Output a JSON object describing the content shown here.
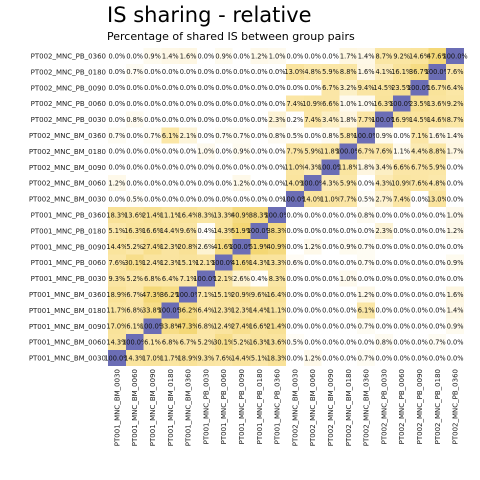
{
  "chart_data": {
    "type": "heatmap",
    "title": "IS sharing - relative",
    "subtitle": "Percentage of shared IS between group pairs",
    "rows": [
      "PT002_MNC_PB_0360",
      "PT002_MNC_PB_0180",
      "PT002_MNC_PB_0090",
      "PT002_MNC_PB_0060",
      "PT002_MNC_PB_0030",
      "PT002_MNC_BM_0360",
      "PT002_MNC_BM_0180",
      "PT002_MNC_BM_0090",
      "PT002_MNC_BM_0060",
      "PT002_MNC_BM_0030",
      "PT001_MNC_PB_0360",
      "PT001_MNC_PB_0180",
      "PT001_MNC_PB_0090",
      "PT001_MNC_PB_0060",
      "PT001_MNC_PB_0030",
      "PT001_MNC_BM_0360",
      "PT001_MNC_BM_0180",
      "PT001_MNC_BM_0090",
      "PT001_MNC_BM_0060",
      "PT001_MNC_BM_0030"
    ],
    "columns": [
      "PT001_MNC_BM_0030",
      "PT001_MNC_BM_0060",
      "PT001_MNC_BM_0090",
      "PT001_MNC_BM_0180",
      "PT001_MNC_BM_0360",
      "PT001_MNC_PB_0030",
      "PT001_MNC_PB_0060",
      "PT001_MNC_PB_0090",
      "PT001_MNC_PB_0180",
      "PT001_MNC_PB_0360",
      "PT002_MNC_BM_0030",
      "PT002_MNC_BM_0060",
      "PT002_MNC_BM_0090",
      "PT002_MNC_BM_0180",
      "PT002_MNC_BM_0360",
      "PT002_MNC_PB_0030",
      "PT002_MNC_PB_0060",
      "PT002_MNC_PB_0090",
      "PT002_MNC_PB_0180",
      "PT002_MNC_PB_0360"
    ],
    "values": [
      [
        "0.0%",
        "0.0%",
        "0.9%",
        "1.4%",
        "1.6%",
        "0.0%",
        "0.9%",
        "0.0%",
        "1.2%",
        "1.0%",
        "0.0%",
        "0.0%",
        "0.0%",
        "1.7%",
        "1.4%",
        "8.7%",
        "9.2%",
        "14.6%",
        "47.6%",
        "100.0%"
      ],
      [
        "0.0%",
        "0.7%",
        "0.0%",
        "0.0%",
        "0.0%",
        "0.0%",
        "0.0%",
        "0.0%",
        "0.0%",
        "0.0%",
        "13.0%",
        "4.8%",
        "5.9%",
        "8.8%",
        "1.6%",
        "4.1%",
        "16.1%",
        "36.7%",
        "100.0%",
        "7.6%"
      ],
      [
        "0.0%",
        "0.0%",
        "0.0%",
        "0.0%",
        "0.0%",
        "0.0%",
        "0.0%",
        "0.0%",
        "0.0%",
        "0.0%",
        "0.0%",
        "0.0%",
        "6.7%",
        "3.2%",
        "9.4%",
        "14.5%",
        "23.5%",
        "100.0%",
        "16.7%",
        "6.4%"
      ],
      [
        "0.0%",
        "0.0%",
        "0.0%",
        "0.0%",
        "0.0%",
        "0.0%",
        "0.0%",
        "0.0%",
        "0.0%",
        "0.0%",
        "7.4%",
        "10.9%",
        "6.6%",
        "1.0%",
        "1.0%",
        "16.3%",
        "100.0%",
        "23.5%",
        "13.6%",
        "9.2%"
      ],
      [
        "0.0%",
        "0.8%",
        "0.0%",
        "0.0%",
        "0.0%",
        "0.0%",
        "0.0%",
        "0.0%",
        "0.0%",
        "2.3%",
        "0.2%",
        "7.4%",
        "3.4%",
        "1.8%",
        "7.7%",
        "100.0%",
        "16.9%",
        "14.5%",
        "14.6%",
        "8.7%"
      ],
      [
        "0.7%",
        "0.0%",
        "0.7%",
        "6.1%",
        "2.1%",
        "0.0%",
        "0.7%",
        "0.7%",
        "0.0%",
        "0.8%",
        "0.5%",
        "0.0%",
        "0.8%",
        "5.8%",
        "100.0%",
        "0.9%",
        "0.0%",
        "7.1%",
        "1.6%",
        "1.4%"
      ],
      [
        "0.0%",
        "0.0%",
        "0.0%",
        "0.0%",
        "0.0%",
        "1.0%",
        "0.0%",
        "0.9%",
        "0.0%",
        "0.0%",
        "7.7%",
        "5.9%",
        "11.8%",
        "100.0%",
        "6.7%",
        "7.6%",
        "1.1%",
        "4.4%",
        "8.8%",
        "1.7%"
      ],
      [
        "0.0%",
        "0.0%",
        "0.0%",
        "0.0%",
        "0.0%",
        "0.0%",
        "0.0%",
        "0.0%",
        "0.0%",
        "0.0%",
        "11.0%",
        "4.3%",
        "100.0%",
        "11.8%",
        "1.8%",
        "3.4%",
        "6.6%",
        "6.7%",
        "5.9%",
        "0.0%"
      ],
      [
        "1.2%",
        "0.0%",
        "0.0%",
        "0.0%",
        "0.0%",
        "0.0%",
        "0.0%",
        "1.2%",
        "0.0%",
        "0.0%",
        "14.0%",
        "100.0%",
        "4.3%",
        "5.9%",
        "0.0%",
        "4.3%",
        "10.9%",
        "7.6%",
        "4.8%",
        "0.0%"
      ],
      [
        "0.0%",
        "0.5%",
        "0.0%",
        "0.0%",
        "0.0%",
        "0.0%",
        "0.0%",
        "0.0%",
        "0.0%",
        "0.0%",
        "100.0%",
        "14.0%",
        "11.0%",
        "7.7%",
        "0.5%",
        "2.7%",
        "7.4%",
        "0.0%",
        "13.0%",
        "0.0%"
      ],
      [
        "18.3%",
        "13.6%",
        "21.4%",
        "11.1%",
        "16.4%",
        "8.3%",
        "13.3%",
        "40.9%",
        "38.3%",
        "100.0%",
        "0.0%",
        "0.0%",
        "0.0%",
        "0.0%",
        "0.8%",
        "0.0%",
        "0.0%",
        "0.0%",
        "0.0%",
        "1.0%"
      ],
      [
        "5.1%",
        "16.3%",
        "16.6%",
        "14.4%",
        "9.6%",
        "0.4%",
        "14.3%",
        "51.9%",
        "100.0%",
        "38.3%",
        "0.0%",
        "0.0%",
        "0.0%",
        "0.0%",
        "0.0%",
        "2.3%",
        "0.0%",
        "0.0%",
        "0.0%",
        "1.2%"
      ],
      [
        "14.4%",
        "5.2%",
        "27.4%",
        "12.3%",
        "20.8%",
        "2.6%",
        "41.6%",
        "100.0%",
        "51.9%",
        "40.9%",
        "0.0%",
        "1.2%",
        "0.0%",
        "0.9%",
        "0.7%",
        "0.0%",
        "0.0%",
        "0.0%",
        "0.0%",
        "0.0%"
      ],
      [
        "7.6%",
        "30.1%",
        "12.4%",
        "12.3%",
        "15.1%",
        "12.1%",
        "100.0%",
        "41.6%",
        "14.3%",
        "13.3%",
        "0.6%",
        "0.0%",
        "0.0%",
        "0.0%",
        "0.7%",
        "0.0%",
        "0.0%",
        "0.0%",
        "0.0%",
        "0.9%"
      ],
      [
        "9.3%",
        "5.2%",
        "6.8%",
        "6.4%",
        "7.1%",
        "100.0%",
        "12.1%",
        "2.6%",
        "0.4%",
        "8.3%",
        "0.0%",
        "0.0%",
        "0.0%",
        "1.0%",
        "0.0%",
        "0.0%",
        "0.0%",
        "0.0%",
        "0.0%",
        "0.0%"
      ],
      [
        "18.9%",
        "6.7%",
        "47.3%",
        "36.2%",
        "100.0%",
        "7.1%",
        "15.1%",
        "20.9%",
        "9.6%",
        "16.4%",
        "0.0%",
        "0.0%",
        "0.0%",
        "0.0%",
        "1.2%",
        "0.0%",
        "0.0%",
        "0.0%",
        "0.0%",
        "1.6%"
      ],
      [
        "11.7%",
        "6.8%",
        "33.8%",
        "100.0%",
        "36.2%",
        "6.4%",
        "12.3%",
        "12.3%",
        "14.4%",
        "11.1%",
        "0.0%",
        "0.0%",
        "0.0%",
        "0.0%",
        "6.1%",
        "0.0%",
        "0.0%",
        "0.0%",
        "0.0%",
        "1.4%"
      ],
      [
        "17.0%",
        "6.1%",
        "100.0%",
        "33.8%",
        "47.3%",
        "6.8%",
        "12.4%",
        "27.4%",
        "16.6%",
        "21.4%",
        "0.0%",
        "0.0%",
        "0.0%",
        "0.0%",
        "0.7%",
        "0.0%",
        "0.0%",
        "0.0%",
        "0.0%",
        "0.9%"
      ],
      [
        "14.3%",
        "100.0%",
        "6.1%",
        "6.8%",
        "6.7%",
        "5.2%",
        "30.1%",
        "5.2%",
        "16.3%",
        "13.6%",
        "0.5%",
        "0.0%",
        "0.0%",
        "0.0%",
        "0.0%",
        "0.8%",
        "0.0%",
        "0.0%",
        "0.7%",
        "0.0%"
      ],
      [
        "100.0%",
        "14.3%",
        "17.0%",
        "11.7%",
        "18.9%",
        "9.3%",
        "7.6%",
        "14.4%",
        "5.1%",
        "18.3%",
        "0.0%",
        "1.2%",
        "0.0%",
        "0.0%",
        "0.7%",
        "0.0%",
        "0.0%",
        "0.0%",
        "0.0%",
        "0.0%"
      ]
    ],
    "colors": {
      "low": "#ffffff",
      "mid": "#fbe7a8",
      "high": "#f4d774",
      "diagonal": "#6b6db5"
    },
    "grid": false,
    "legend": "none"
  }
}
